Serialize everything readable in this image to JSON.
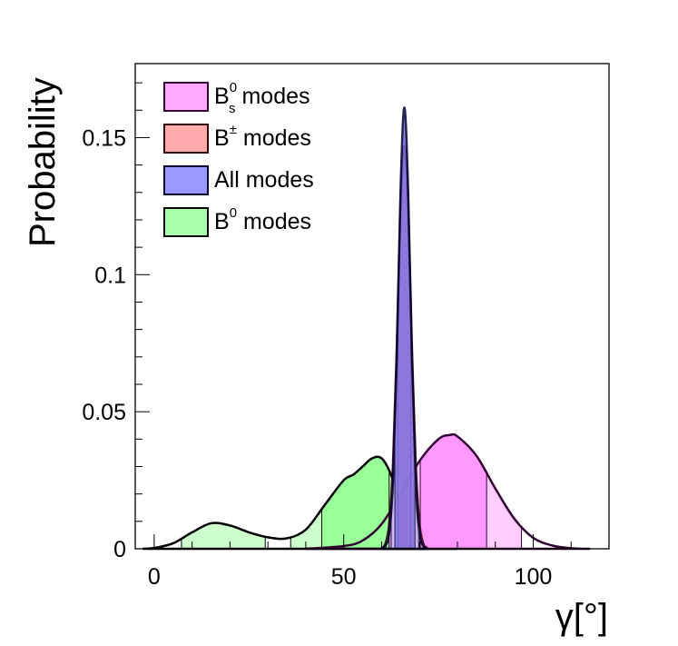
{
  "chart_data": {
    "type": "area",
    "title": "",
    "xlabel": "γ[°]",
    "ylabel": "Probability",
    "xlim": [
      -5,
      120
    ],
    "ylim": [
      0,
      0.177
    ],
    "x_ticks": [
      0,
      50,
      100
    ],
    "x_tick_labels": [
      "0",
      "50",
      "100"
    ],
    "y_ticks": [
      0,
      0.05,
      0.1,
      0.15
    ],
    "y_tick_labels": [
      "0",
      "0.05",
      "0.1",
      "0.15"
    ],
    "grid": false,
    "legend_position": "top-left",
    "series": [
      {
        "name": "B0 modes",
        "label_base": "B",
        "label_sup": "0",
        "label_sub": "",
        "label_rest": " modes",
        "legend_color": "#aaffaa",
        "dark_color": "#99ff99",
        "light_color": "#ccffcc",
        "line_color": "#000000",
        "x": [
          -3,
          0,
          5,
          10,
          15,
          20,
          25,
          30,
          35,
          40,
          45,
          50,
          52.5,
          55,
          57.5,
          60,
          62.5,
          65,
          67.5,
          70,
          75,
          80
        ],
        "y": [
          0,
          0.0003,
          0.002,
          0.006,
          0.0093,
          0.0085,
          0.006,
          0.0042,
          0.0038,
          0.007,
          0.016,
          0.025,
          0.027,
          0.03,
          0.033,
          0.033,
          0.027,
          0.016,
          0.008,
          0.003,
          0.0005,
          0
        ],
        "interval_68": [
          [
            44.2,
            62
          ]
        ],
        "interval_95": [
          [
            7.2,
            29.3
          ],
          [
            36,
            70
          ]
        ]
      },
      {
        "name": "Bs0 modes",
        "label_base": "B",
        "label_sup": "0",
        "label_sub": "s",
        "label_rest": " modes",
        "legend_color": "#ffaaff",
        "dark_color": "#ff99ff",
        "light_color": "#ffccff",
        "line_color": "#330033",
        "x": [
          40,
          50,
          55,
          60,
          65,
          70,
          75,
          78,
          80,
          85,
          90,
          95,
          100,
          105,
          110,
          115
        ],
        "y": [
          0,
          0.001,
          0.003,
          0.009,
          0.02,
          0.032,
          0.04,
          0.0415,
          0.041,
          0.034,
          0.022,
          0.011,
          0.004,
          0.0012,
          0.0002,
          0
        ],
        "interval_68": [
          [
            70.2,
            87.7
          ]
        ],
        "interval_95": [
          [
            62,
            96.9
          ]
        ]
      },
      {
        "name": "B± modes",
        "label_base": "B",
        "label_sup": "±",
        "label_sub": "",
        "label_rest": " modes",
        "legend_color": "#ffaaaa",
        "dark_color": "#ff9999",
        "light_color": "#ffcccc",
        "line_color": "#330000",
        "x": [
          60,
          61,
          62,
          63,
          64,
          65,
          66,
          67,
          68,
          69,
          70,
          71,
          72
        ],
        "y": [
          0.0003,
          0.0019,
          0.0092,
          0.031,
          0.0736,
          0.1236,
          0.147,
          0.1236,
          0.0736,
          0.031,
          0.0092,
          0.0019,
          0.0003
        ],
        "interval_68": [
          [
            64.3,
            67.7
          ]
        ],
        "interval_95": [
          [
            62.6,
            69.4
          ]
        ]
      },
      {
        "name": "All modes",
        "label_base": "All modes",
        "label_sup": "",
        "label_sub": "",
        "label_rest": "",
        "legend_color": "#9999ff",
        "dark_color": "#7a6ee6",
        "light_color": "#c8b8ee",
        "line_color": "#000033",
        "x": [
          60,
          61,
          62,
          63,
          64,
          65,
          66,
          67,
          68,
          69,
          70,
          71,
          72
        ],
        "y": [
          9e-05,
          0.00089,
          0.0058,
          0.024,
          0.07,
          0.131,
          0.161,
          0.131,
          0.07,
          0.024,
          0.0058,
          0.00089,
          9e-05
        ],
        "interval_68": [
          [
            63.5,
            68.8
          ]
        ],
        "interval_95": [
          [
            62.5,
            69.8
          ]
        ]
      }
    ],
    "legend_order": [
      1,
      2,
      3,
      0
    ]
  }
}
